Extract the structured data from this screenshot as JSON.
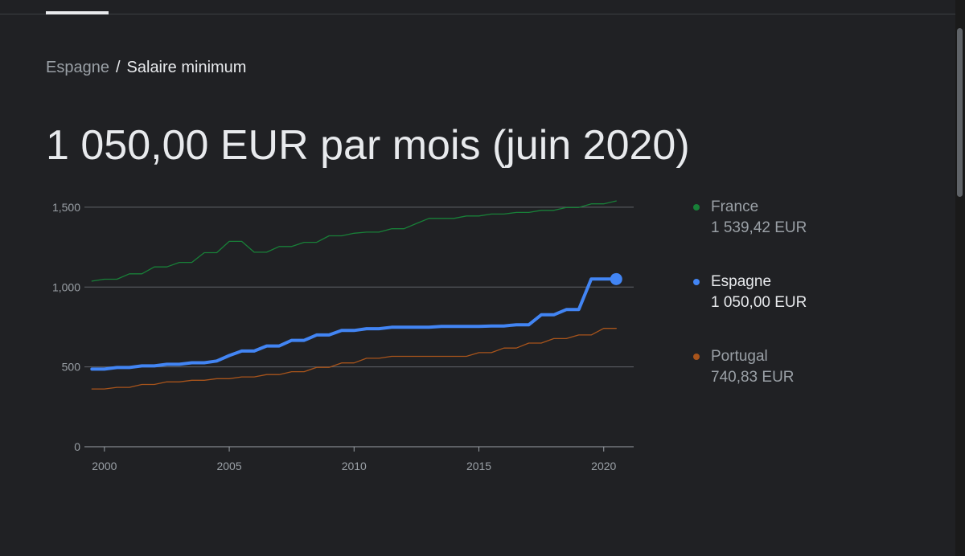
{
  "breadcrumb": {
    "parent": "Espagne",
    "separator": "/",
    "current": "Salaire minimum"
  },
  "headline": "1 050,00 EUR par mois (juin 2020)",
  "legend": [
    {
      "name": "France",
      "value": "1 539,42 EUR",
      "color": "#188038",
      "active": false
    },
    {
      "name": "Espagne",
      "value": "1 050,00 EUR",
      "color": "#4285f4",
      "active": true
    },
    {
      "name": "Portugal",
      "value": "740,83 EUR",
      "color": "#a8541b",
      "active": false
    }
  ],
  "chart_data": {
    "type": "line",
    "xlim": [
      1999.2,
      2021.2
    ],
    "ylim": [
      0,
      1600
    ],
    "y_ticks": [
      0,
      500,
      1000,
      1500
    ],
    "y_tick_labels": [
      "0",
      "500",
      "1,000",
      "1,500"
    ],
    "x_ticks": [
      2000,
      2005,
      2010,
      2015,
      2020
    ],
    "x_tick_labels": [
      "2000",
      "2005",
      "2010",
      "2015",
      "2020"
    ],
    "grid": true,
    "series": [
      {
        "name": "France",
        "color": "#188038",
        "x": [
          1999.5,
          2000.0,
          2000.5,
          2001.0,
          2001.5,
          2002.0,
          2002.5,
          2003.0,
          2003.5,
          2004.0,
          2004.5,
          2005.0,
          2005.5,
          2006.0,
          2006.5,
          2007.0,
          2007.5,
          2008.0,
          2008.5,
          2009.0,
          2009.5,
          2010.0,
          2010.5,
          2011.0,
          2011.5,
          2012.0,
          2012.5,
          2013.0,
          2013.5,
          2014.0,
          2014.5,
          2015.0,
          2015.5,
          2016.0,
          2016.5,
          2017.0,
          2017.5,
          2018.0,
          2018.5,
          2019.0,
          2019.5,
          2020.0,
          2020.5
        ],
        "values": [
          1037,
          1049,
          1049,
          1083,
          1083,
          1126,
          1126,
          1154,
          1154,
          1215,
          1215,
          1286,
          1286,
          1218,
          1218,
          1254,
          1254,
          1280,
          1280,
          1321,
          1321,
          1337,
          1344,
          1344,
          1365,
          1365,
          1398,
          1430,
          1430,
          1430,
          1445,
          1445,
          1457,
          1457,
          1467,
          1467,
          1480,
          1480,
          1498,
          1498,
          1521,
          1521,
          1539
        ]
      },
      {
        "name": "Espagne",
        "color": "#4285f4",
        "x": [
          1999.5,
          2000.0,
          2000.5,
          2001.0,
          2001.5,
          2002.0,
          2002.5,
          2003.0,
          2003.5,
          2004.0,
          2004.5,
          2005.0,
          2005.5,
          2006.0,
          2006.5,
          2007.0,
          2007.5,
          2008.0,
          2008.5,
          2009.0,
          2009.5,
          2010.0,
          2010.5,
          2011.0,
          2011.5,
          2012.0,
          2012.5,
          2013.0,
          2013.5,
          2014.0,
          2014.5,
          2015.0,
          2015.5,
          2016.0,
          2016.5,
          2017.0,
          2017.5,
          2018.0,
          2018.5,
          2019.0,
          2019.5,
          2020.0,
          2020.5
        ],
        "values": [
          486,
          486,
          496,
          496,
          506,
          506,
          516,
          516,
          526,
          526,
          537,
          571,
          599,
          599,
          631,
          631,
          666,
          666,
          700,
          700,
          728,
          728,
          739,
          739,
          748,
          748,
          748,
          748,
          753,
          753,
          753,
          753,
          756,
          756,
          764,
          764,
          826,
          826,
          859,
          859,
          1050,
          1050,
          1050
        ]
      },
      {
        "name": "Portugal",
        "color": "#a8541b",
        "x": [
          1999.5,
          2000.0,
          2000.5,
          2001.0,
          2001.5,
          2002.0,
          2002.5,
          2003.0,
          2003.5,
          2004.0,
          2004.5,
          2005.0,
          2005.5,
          2006.0,
          2006.5,
          2007.0,
          2007.5,
          2008.0,
          2008.5,
          2009.0,
          2009.5,
          2010.0,
          2010.5,
          2011.0,
          2011.5,
          2012.0,
          2012.5,
          2013.0,
          2013.5,
          2014.0,
          2014.5,
          2015.0,
          2015.5,
          2016.0,
          2016.5,
          2017.0,
          2017.5,
          2018.0,
          2018.5,
          2019.0,
          2019.5,
          2020.0,
          2020.5
        ],
        "values": [
          362,
          362,
          372,
          372,
          390,
          390,
          406,
          406,
          416,
          416,
          426,
          426,
          437,
          437,
          452,
          452,
          470,
          470,
          497,
          497,
          525,
          525,
          554,
          554,
          566,
          566,
          566,
          566,
          566,
          566,
          566,
          589,
          589,
          618,
          618,
          649,
          649,
          677,
          677,
          700,
          700,
          741,
          741
        ]
      }
    ],
    "highlight": {
      "series": "Espagne",
      "x": 2020.5,
      "value": 1050
    }
  }
}
